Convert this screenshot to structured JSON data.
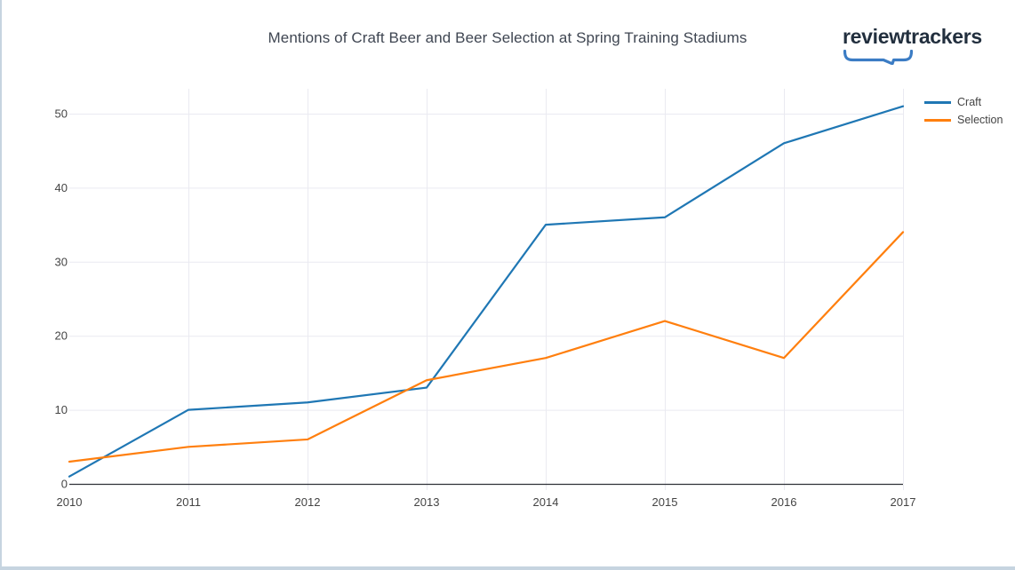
{
  "brand": {
    "name": "reviewtrackers"
  },
  "colors": {
    "craft_line": "#1f77b4",
    "selection_line": "#ff7f0e",
    "grid": "#eaeaf1",
    "axis_line": "#2f3137",
    "tick_text": "#444444",
    "title_text": "#3f4652",
    "logo_text": "#222f3e",
    "logo_swoosh": "#3b7cc4",
    "page_edge": "#c6d4e0",
    "background": "#ffffff"
  },
  "chart_data": {
    "type": "line",
    "title": "Mentions of Craft Beer and Beer Selection at Spring Training Stadiums",
    "x": [
      2010,
      2011,
      2012,
      2013,
      2014,
      2015,
      2016,
      2017
    ],
    "x_tick_labels": [
      "2010",
      "2011",
      "2012",
      "2013",
      "2014",
      "2015",
      "2016",
      "2017"
    ],
    "series": [
      {
        "name": "Craft",
        "color": "#1f77b4",
        "values": [
          1,
          10,
          11,
          13,
          35,
          36,
          46,
          51
        ]
      },
      {
        "name": "Selection",
        "color": "#ff7f0e",
        "values": [
          3,
          5,
          6,
          14,
          17,
          22,
          17,
          34
        ]
      }
    ],
    "yticks": [
      0,
      10,
      20,
      30,
      40,
      50
    ],
    "ylim": [
      0,
      53.5
    ],
    "xlabel": "",
    "ylabel": "",
    "grid": true,
    "legend_position": "top-right"
  }
}
